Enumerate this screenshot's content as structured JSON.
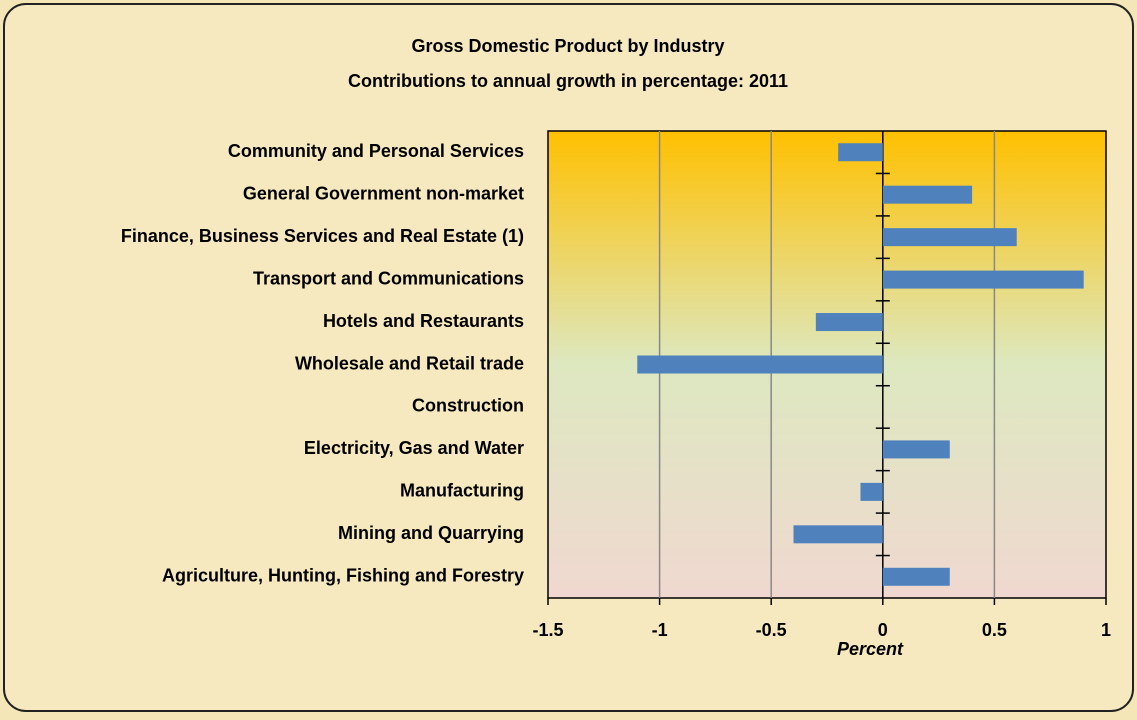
{
  "chart_data": {
    "type": "bar",
    "orientation": "horizontal",
    "title": "Gross Domestic Product by Industry",
    "subtitle": "Contributions to annual growth in percentage: 2011",
    "categories": [
      "Community and Personal Services",
      "General Government non-market",
      "Finance, Business Services and Real Estate (1)",
      "Transport and Communications",
      "Hotels and Restaurants",
      "Wholesale and Retail trade",
      "Construction",
      "Electricity, Gas and Water",
      "Manufacturing",
      "Mining and Quarrying",
      "Agriculture, Hunting, Fishing and Forestry"
    ],
    "values": [
      -0.2,
      0.4,
      0.6,
      0.9,
      -0.3,
      -1.1,
      0,
      0.3,
      -0.1,
      -0.4,
      0.3
    ],
    "color": "#4f81bd",
    "xlabel": "Percent",
    "xlim": [
      -1.5,
      1
    ],
    "xticks": [
      -1.5,
      -1,
      -0.5,
      0,
      0.5,
      1
    ],
    "grid": true
  }
}
